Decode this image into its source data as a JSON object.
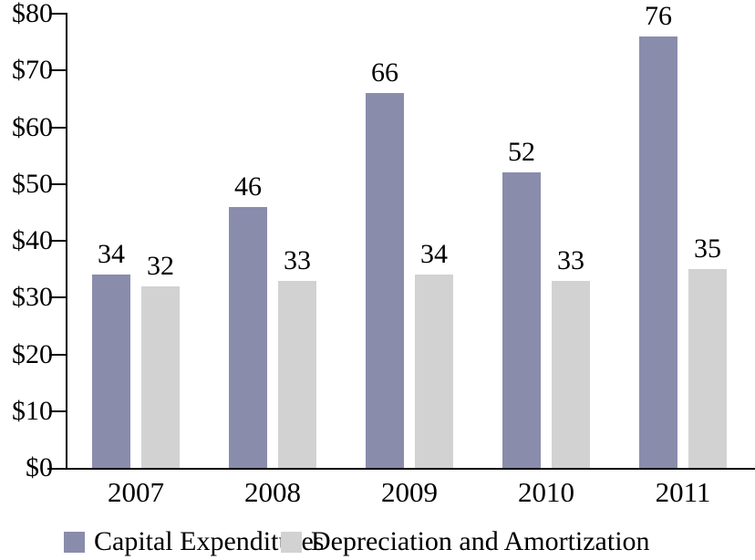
{
  "chart_data": {
    "type": "bar",
    "title": "",
    "xlabel": "",
    "ylabel": "",
    "categories": [
      "2007",
      "2008",
      "2009",
      "2010",
      "2011"
    ],
    "series": [
      {
        "name": "Capital Expenditures",
        "color": "#8A8CAC",
        "values": [
          34,
          46,
          66,
          52,
          76
        ]
      },
      {
        "name": "Depreciation and Amortization",
        "color": "#D2D2D2",
        "values": [
          32,
          33,
          34,
          33,
          35
        ]
      }
    ],
    "value_labels": [
      [
        "34",
        "46",
        "66",
        "52",
        "76"
      ],
      [
        "32",
        "33",
        "34",
        "33",
        "35"
      ]
    ],
    "ylim": [
      0,
      80
    ],
    "ytick_step": 10,
    "ytick_labels": [
      "$0",
      "$10",
      "$20",
      "$30",
      "$40",
      "$50",
      "$60",
      "$70",
      "$80"
    ],
    "grid": false,
    "legend_position": "bottom",
    "axis_color": "#000000",
    "text_color": "#000000"
  }
}
